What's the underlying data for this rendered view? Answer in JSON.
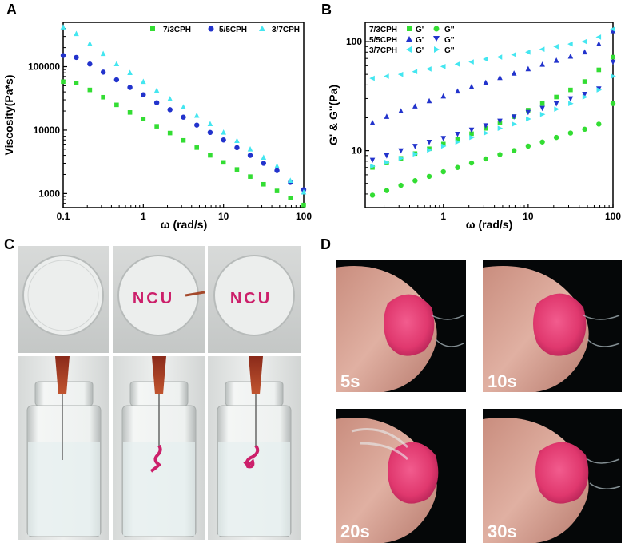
{
  "panels": {
    "a": {
      "label": "A"
    },
    "b": {
      "label": "B"
    },
    "c": {
      "label": "C"
    },
    "d": {
      "label": "D"
    }
  },
  "colors": {
    "green": "#33dd33",
    "blue": "#2233cc",
    "cyan": "#44e6f0",
    "ink": "#cc1f6a"
  },
  "chart_data": [
    {
      "type": "scatter",
      "id": "A",
      "title": "",
      "xlabel": "ω (rad/s)",
      "ylabel": "Viscosity(Pa*s)",
      "xscale": "log",
      "yscale": "log",
      "xlim": [
        0.1,
        100
      ],
      "ylim": [
        600,
        500000
      ],
      "xticks": [
        0.1,
        1,
        10,
        100
      ],
      "xtick_labels": [
        "0.1",
        "1",
        "10",
        "100"
      ],
      "yticks": [
        1000,
        10000,
        100000
      ],
      "ytick_labels": [
        "1000",
        "10000",
        "100000"
      ],
      "legend_position": "top-right",
      "series": [
        {
          "name": "7/3CPH",
          "marker": "square",
          "color": "#33dd33",
          "x": [
            0.1,
            0.146,
            0.215,
            0.316,
            0.464,
            0.681,
            1,
            1.47,
            2.15,
            3.16,
            4.64,
            6.81,
            10,
            14.7,
            21.5,
            31.6,
            46.4,
            68.1,
            100
          ],
          "y": [
            58000,
            55000,
            43000,
            33000,
            25000,
            19000,
            15000,
            11500,
            9000,
            6900,
            5300,
            4000,
            3100,
            2400,
            1850,
            1400,
            1100,
            850,
            660
          ]
        },
        {
          "name": "5/5CPH",
          "marker": "circle",
          "color": "#2233cc",
          "x": [
            0.1,
            0.146,
            0.215,
            0.316,
            0.464,
            0.681,
            1,
            1.47,
            2.15,
            3.16,
            4.64,
            6.81,
            10,
            14.7,
            21.5,
            31.6,
            46.4,
            68.1,
            100
          ],
          "y": [
            150000,
            140000,
            110000,
            82000,
            62000,
            47000,
            36000,
            27000,
            21000,
            16000,
            12000,
            9200,
            7000,
            5300,
            4000,
            3000,
            2300,
            1500,
            1150
          ]
        },
        {
          "name": "3/7CPH",
          "marker": "triangle",
          "color": "#44e6f0",
          "x": [
            0.1,
            0.146,
            0.215,
            0.316,
            0.464,
            0.681,
            1,
            1.47,
            2.15,
            3.16,
            4.64,
            6.81,
            10,
            14.7,
            21.5,
            31.6,
            46.4,
            68.1,
            100
          ],
          "y": [
            420000,
            330000,
            230000,
            160000,
            110000,
            80000,
            58000,
            42000,
            31000,
            23000,
            17000,
            12500,
            9200,
            6800,
            5000,
            3700,
            2700,
            1600,
            1050
          ]
        }
      ]
    },
    {
      "type": "scatter",
      "id": "B",
      "title": "",
      "xlabel": "ω (rad/s)",
      "ylabel": "G' & G''(Pa)",
      "xscale": "log",
      "yscale": "log",
      "xlim": [
        0.12,
        100
      ],
      "ylim": [
        3,
        150
      ],
      "xticks": [
        1,
        10,
        100
      ],
      "xtick_labels": [
        "1",
        "10",
        "100"
      ],
      "yticks": [
        10,
        100
      ],
      "ytick_labels": [
        "10",
        "100"
      ],
      "legend_position": "top-left",
      "legend": {
        "rows": [
          {
            "label": "7/3CPH",
            "g1": "G'",
            "g2": "G''"
          },
          {
            "label": "5/5CPH",
            "g1": "G'",
            "g2": "G''"
          },
          {
            "label": "3/7CPH",
            "g1": "G'",
            "g2": "G''"
          }
        ]
      },
      "series": [
        {
          "name": "7/3CPH G'",
          "marker": "square",
          "color": "#33dd33",
          "x": [
            0.146,
            0.215,
            0.316,
            0.464,
            0.681,
            1,
            1.47,
            2.15,
            3.16,
            4.64,
            6.81,
            10,
            14.7,
            21.5,
            31.6,
            46.4,
            68.1,
            100
          ],
          "y": [
            7,
            7.7,
            8.5,
            9.4,
            10.4,
            11.5,
            12.8,
            14.3,
            16,
            18,
            20.5,
            23.5,
            27,
            31,
            36,
            43,
            55,
            72
          ]
        },
        {
          "name": "7/3CPH G''",
          "marker": "circle",
          "color": "#33dd33",
          "x": [
            0.146,
            0.215,
            0.316,
            0.464,
            0.681,
            1,
            1.47,
            2.15,
            3.16,
            4.64,
            6.81,
            10,
            14.7,
            21.5,
            31.6,
            46.4,
            68.1,
            100
          ],
          "y": [
            3.9,
            4.3,
            4.8,
            5.3,
            5.8,
            6.4,
            7,
            7.7,
            8.4,
            9.2,
            10,
            11,
            12,
            13.2,
            14.5,
            15.7,
            17.5,
            27
          ]
        },
        {
          "name": "5/5CPH G'",
          "marker": "triangle",
          "color": "#2233cc",
          "x": [
            0.146,
            0.215,
            0.316,
            0.464,
            0.681,
            1,
            1.47,
            2.15,
            3.16,
            4.64,
            6.81,
            10,
            14.7,
            21.5,
            31.6,
            46.4,
            68.1,
            100
          ],
          "y": [
            18,
            20.5,
            23,
            25.5,
            28.5,
            31.5,
            35,
            38.5,
            42,
            46.5,
            51,
            56,
            61.5,
            67,
            73,
            80,
            95,
            125
          ]
        },
        {
          "name": "5/5CPH G''",
          "marker": "triangle-down",
          "color": "#2233cc",
          "x": [
            0.146,
            0.215,
            0.316,
            0.464,
            0.681,
            1,
            1.47,
            2.15,
            3.16,
            4.64,
            6.81,
            10,
            14.7,
            21.5,
            31.6,
            46.4,
            68.1,
            100
          ],
          "y": [
            8.2,
            9,
            10,
            11,
            12,
            13,
            14.2,
            15.5,
            17,
            18.7,
            20.5,
            22.5,
            24.5,
            27,
            30,
            33,
            37,
            65
          ]
        },
        {
          "name": "3/7CPH G'",
          "marker": "triangle-left",
          "color": "#44e6f0",
          "x": [
            0.146,
            0.215,
            0.316,
            0.464,
            0.681,
            1,
            1.47,
            2.15,
            3.16,
            4.64,
            6.81,
            10,
            14.7,
            21.5,
            31.6,
            46.4,
            68.1,
            100
          ],
          "y": [
            46,
            48,
            50,
            53,
            56,
            59,
            62,
            65,
            69,
            72,
            76,
            80,
            85,
            90,
            95,
            100,
            110,
            130
          ]
        },
        {
          "name": "3/7CPH G''",
          "marker": "triangle-right",
          "color": "#44e6f0",
          "x": [
            0.146,
            0.215,
            0.316,
            0.464,
            0.681,
            1,
            1.47,
            2.15,
            3.16,
            4.64,
            6.81,
            10,
            14.7,
            21.5,
            31.6,
            46.4,
            68.1,
            100
          ],
          "y": [
            7.2,
            7.8,
            8.5,
            9.3,
            10.1,
            11,
            12,
            13.2,
            14.5,
            16,
            17.5,
            19.5,
            21.5,
            24,
            27,
            31,
            36,
            48
          ]
        }
      ]
    }
  ],
  "photos_c": {
    "dish_text": "NCU"
  },
  "photos_d": {
    "times": [
      "5s",
      "10s",
      "20s",
      "30s"
    ]
  }
}
